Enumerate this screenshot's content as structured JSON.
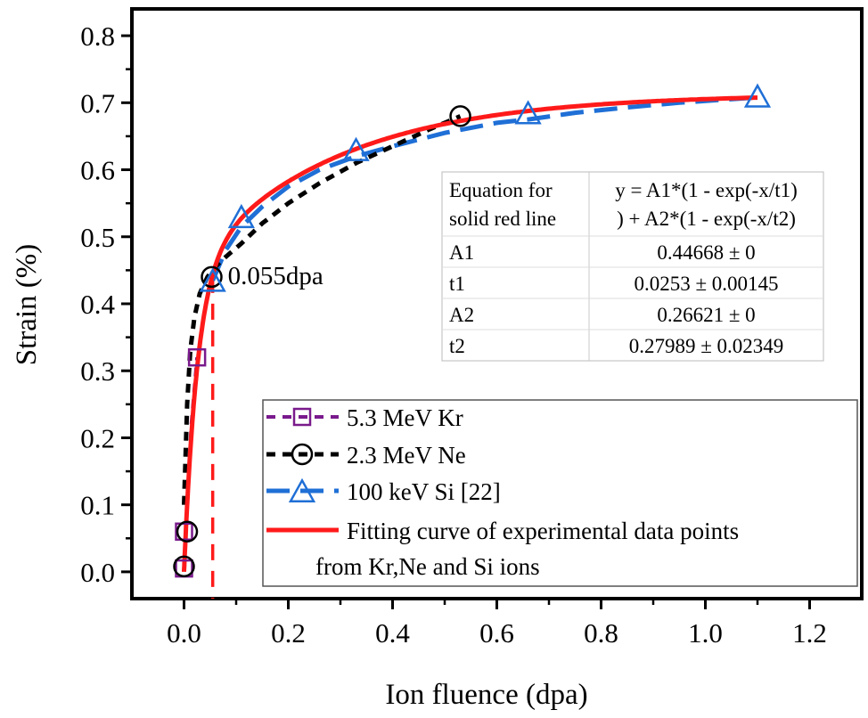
{
  "chart_data": {
    "type": "scatter",
    "xlabel": "Ion fluence (dpa)",
    "ylabel": "Strain (%)",
    "xlim": [
      -0.1,
      1.3
    ],
    "ylim": [
      -0.04,
      0.84
    ],
    "xticks": [
      0.0,
      0.2,
      0.4,
      0.6,
      0.8,
      1.0,
      1.2
    ],
    "xtick_labels": [
      "0.0",
      "0.2",
      "0.4",
      "0.6",
      "0.8",
      "1.0",
      "1.2"
    ],
    "yticks": [
      0.0,
      0.1,
      0.2,
      0.3,
      0.4,
      0.5,
      0.6,
      0.7,
      0.8
    ],
    "ytick_labels": [
      "0.0",
      "0.1",
      "0.2",
      "0.3",
      "0.4",
      "0.5",
      "0.6",
      "0.7",
      "0.8"
    ],
    "grid": false,
    "legend_position": "bottom-right",
    "series": [
      {
        "name": "5.3 MeV Kr",
        "marker": "square",
        "line": "dash",
        "color": "#7a1a8c",
        "x": [
          0.0,
          0.0,
          0.025
        ],
        "y": [
          0.005,
          0.06,
          0.32
        ],
        "curve_x": [
          0.0,
          0.006,
          0.014,
          0.025
        ],
        "curve_y": [
          0.005,
          0.1,
          0.22,
          0.32
        ]
      },
      {
        "name": "2.3 MeV Ne",
        "marker": "circle",
        "line": "dot",
        "color": "#000000",
        "x": [
          0.0,
          0.006,
          0.053,
          0.53
        ],
        "y": [
          0.008,
          0.06,
          0.44,
          0.68
        ],
        "curve_x": [
          0.0,
          0.002,
          0.006,
          0.012,
          0.02,
          0.03,
          0.045,
          0.06,
          0.08,
          0.11,
          0.15,
          0.2,
          0.26,
          0.33,
          0.4,
          0.47,
          0.53
        ],
        "curve_y": [
          0.1,
          0.15,
          0.25,
          0.33,
          0.38,
          0.415,
          0.44,
          0.455,
          0.47,
          0.49,
          0.52,
          0.55,
          0.58,
          0.61,
          0.635,
          0.66,
          0.68
        ]
      },
      {
        "name": "100 keV Si [22]",
        "marker": "triangle",
        "line": "dash",
        "color": "#1f6fd6",
        "x": [
          0.055,
          0.11,
          0.33,
          0.66,
          1.1
        ],
        "y": [
          0.435,
          0.53,
          0.63,
          0.685,
          0.71
        ],
        "curve_x": [
          0.055,
          0.08,
          0.11,
          0.15,
          0.2,
          0.26,
          0.33,
          0.4,
          0.5,
          0.6,
          0.66,
          0.75,
          0.85,
          0.95,
          1.1
        ],
        "curve_y": [
          0.435,
          0.48,
          0.515,
          0.545,
          0.575,
          0.6,
          0.62,
          0.635,
          0.655,
          0.67,
          0.675,
          0.685,
          0.693,
          0.7,
          0.708
        ]
      }
    ],
    "fit": {
      "name": "Fitting curve of experimental data points from Kr,Ne and Si ions",
      "legend_line1": "Fitting curve of experimental data points",
      "legend_line2": "from Kr,Ne and Si ions",
      "color": "#ff1a1a",
      "A1": 0.44668,
      "t1": 0.0253,
      "A2": 0.26621,
      "t2": 0.27989,
      "x_range": [
        0.0,
        1.1
      ]
    },
    "annotation": {
      "text": "0.055dpa",
      "x": 0.055,
      "vline_color": "#ff1a1a"
    },
    "table": {
      "rows": [
        {
          "label_line1": "Equation for",
          "label_line2": "solid red line",
          "value_line1": "y = A1*(1 - exp(-x/t1)",
          "value_line2": ") + A2*(1 - exp(-x/t2)"
        },
        {
          "label_line1": "A1",
          "label_line2": "",
          "value_line1": "0.44668 ± 0",
          "value_line2": ""
        },
        {
          "label_line1": "t1",
          "label_line2": "",
          "value_line1": "0.0253 ± 0.00145",
          "value_line2": ""
        },
        {
          "label_line1": "A2",
          "label_line2": "",
          "value_line1": "0.26621 ± 0",
          "value_line2": ""
        },
        {
          "label_line1": "t2",
          "label_line2": "",
          "value_line1": "0.27989 ± 0.02349",
          "value_line2": ""
        }
      ]
    }
  }
}
